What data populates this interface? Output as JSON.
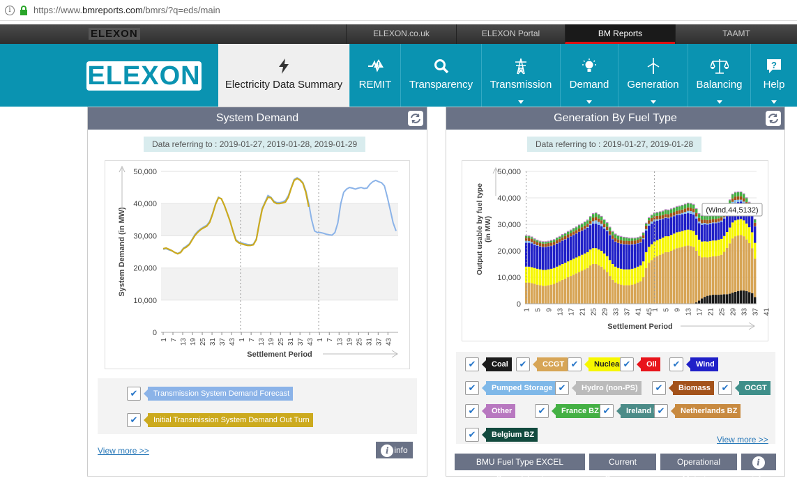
{
  "browser": {
    "url_prefix": "https://www.",
    "url_domain": "bmreports.com",
    "url_path": "/bmrs/?q=eds/main"
  },
  "top_strip": {
    "logo": "ELEXON",
    "tabs": [
      {
        "label": "ELEXON.co.uk"
      },
      {
        "label": "ELEXON Portal"
      },
      {
        "label": "BM Reports"
      },
      {
        "label": "TAAMT"
      }
    ]
  },
  "nav": {
    "logo": "ELEXON",
    "items": [
      {
        "label": "Electricity Data Summary",
        "icon": "bolt-icon"
      },
      {
        "label": "REMIT",
        "icon": "warning-icon"
      },
      {
        "label": "Transparency",
        "icon": "search-icon"
      },
      {
        "label": "Transmission",
        "icon": "pylon-icon"
      },
      {
        "label": "Demand",
        "icon": "lightbulb-icon"
      },
      {
        "label": "Generation",
        "icon": "wind-turbine-icon"
      },
      {
        "label": "Balancing",
        "icon": "scales-icon"
      },
      {
        "label": "Help",
        "icon": "help-icon"
      }
    ]
  },
  "system_demand": {
    "title": "System Demand",
    "data_ref": "Data referring to : 2019-01-27, 2019-01-28, 2019-01-29",
    "legend": [
      "Transmission System Demand Forecast",
      "Initial Transmission System Demand Out Turn"
    ],
    "view_more": "View more >>",
    "info": "info"
  },
  "generation": {
    "title": "Generation By Fuel Type",
    "data_ref": "Data referring to : 2019-01-27, 2019-01-28",
    "tooltip": "(Wind,44,5132)",
    "fuels": [
      {
        "label": "Coal",
        "color": "#1b1b1b",
        "text": "#ffffff"
      },
      {
        "label": "CCGT",
        "color": "#d7a556",
        "text": "#ffffff"
      },
      {
        "label": "Nuclear",
        "color": "#f7f700",
        "text": "#222222"
      },
      {
        "label": "Oil",
        "color": "#e8141b",
        "text": "#ffffff"
      },
      {
        "label": "Wind",
        "color": "#2020c8",
        "text": "#ffffff"
      },
      {
        "label": "Pumped Storage",
        "color": "#7fb8e8",
        "text": "#ffffff"
      },
      {
        "label": "Hydro (non-PS)",
        "color": "#bbbbbb",
        "text": "#ffffff"
      },
      {
        "label": "Biomass",
        "color": "#a3521a",
        "text": "#ffffff"
      },
      {
        "label": "OCGT",
        "color": "#3f8f8a",
        "text": "#ffffff"
      },
      {
        "label": "Other",
        "color": "#b878c0",
        "text": "#ffffff"
      },
      {
        "label": "France BZ",
        "color": "#44b044",
        "text": "#ffffff"
      },
      {
        "label": "Ireland BZ",
        "color": "#4c8c88",
        "text": "#ffffff"
      },
      {
        "label": "Netherlands BZ",
        "color": "#c88a40",
        "text": "#ffffff"
      },
      {
        "label": "Belgium BZ",
        "color": "#124a3e",
        "text": "#ffffff"
      }
    ],
    "view_more": "View more >>",
    "buttons": [
      "BMU Fuel Type EXCEL Spreadsheet",
      "Current Summary",
      "Operational Metering"
    ],
    "info": "info"
  },
  "chart_data": [
    {
      "type": "line",
      "ylabel": "System Demand (in MW)",
      "xlabel": "Settlement Period",
      "ylim": [
        0,
        50000
      ],
      "yticks": [
        "0",
        "10,000",
        "20,000",
        "30,000",
        "40,000",
        "50,000"
      ],
      "xticks": [
        "1",
        "7",
        "13",
        "19",
        "25",
        "31",
        "37",
        "43",
        "1",
        "7",
        "13",
        "19",
        "25",
        "31",
        "37",
        "43",
        "1",
        "7",
        "13",
        "19",
        "25",
        "31",
        "37",
        "43"
      ],
      "grid": "alternating bands",
      "series": [
        {
          "name": "Transmission System Demand Forecast",
          "color": "#8bb3e8",
          "values": [
            25800,
            26000,
            25600,
            25300,
            24800,
            24500,
            25000,
            26200,
            26800,
            27500,
            29000,
            30500,
            31500,
            32200,
            32800,
            33300,
            34500,
            37000,
            40000,
            42000,
            41500,
            39500,
            37000,
            34500,
            31500,
            28800,
            28000,
            27800,
            27500,
            27300,
            27200,
            27400,
            29000,
            34000,
            38500,
            40500,
            42500,
            42000,
            40800,
            40300,
            40300,
            40500,
            41000,
            42500,
            45000,
            47500,
            48000,
            47500,
            46500,
            44000,
            40000,
            35000,
            31500,
            31000,
            31000,
            30800,
            30500,
            30300,
            30200,
            31000,
            34000,
            40000,
            43500,
            44500,
            45000,
            44800,
            44500,
            44800,
            45000,
            44700,
            44800,
            46000,
            46800,
            47200,
            46800,
            46500,
            45500,
            42000,
            38000,
            34000,
            31500
          ]
        },
        {
          "name": "Initial Transmission System Demand Out Turn",
          "color": "#ccaa1e",
          "values": [
            26000,
            26200,
            25800,
            25400,
            24800,
            24400,
            24800,
            26000,
            26500,
            27300,
            28800,
            30200,
            31200,
            32000,
            32500,
            33000,
            34200,
            36800,
            39800,
            41800,
            41500,
            39500,
            37000,
            34500,
            31300,
            28500,
            27800,
            27500,
            27200,
            27000,
            27000,
            27200,
            28800,
            33800,
            38200,
            40200,
            42000,
            41800,
            40500,
            40000,
            40000,
            40200,
            40500,
            42000,
            44800,
            47200,
            47800,
            47300,
            46300,
            43500,
            39000
          ]
        }
      ]
    },
    {
      "type": "area",
      "stacked": true,
      "ylabel": "Output usable by fuel type (in MW)",
      "xlabel": "Settlement Period",
      "ylim": [
        0,
        50000
      ],
      "yticks": [
        "0",
        "10,000",
        "20,000",
        "30,000",
        "40,000",
        "50,000"
      ],
      "xticks": [
        "1",
        "5",
        "9",
        "13",
        "17",
        "21",
        "25",
        "29",
        "33",
        "37",
        "41",
        "45",
        "1",
        "5",
        "9",
        "13",
        "17",
        "21",
        "25",
        "29",
        "33",
        "37",
        "41"
      ],
      "series": [
        {
          "name": "Coal",
          "values": [
            0,
            0,
            0,
            0,
            0,
            0,
            0,
            0,
            0,
            0,
            0,
            0,
            0,
            0,
            0,
            0,
            0,
            0,
            0,
            0,
            0,
            0,
            0,
            0,
            0,
            0,
            0,
            0,
            0,
            0,
            0,
            0,
            0,
            0,
            0,
            0,
            0,
            0,
            0,
            0,
            0,
            0,
            0,
            0,
            0,
            0,
            0,
            0,
            0,
            0,
            0,
            0,
            0,
            0,
            0,
            0,
            0,
            0,
            0,
            0,
            0,
            500,
            1200,
            2000,
            2600,
            3000,
            3200,
            3400,
            3400,
            3400,
            3500,
            3600,
            3600,
            3800,
            4200,
            4500,
            4800,
            5000,
            5000,
            4800,
            4400,
            4000,
            2500
          ]
        },
        {
          "name": "CCGT",
          "values": [
            8000,
            8000,
            7800,
            7500,
            7200,
            7000,
            6800,
            6800,
            7000,
            7200,
            7500,
            8000,
            8500,
            9000,
            9500,
            10000,
            10500,
            11000,
            11500,
            12000,
            12500,
            13000,
            13500,
            14500,
            15000,
            15000,
            14500,
            14000,
            13000,
            12000,
            10500,
            9000,
            8000,
            7500,
            7200,
            7000,
            7000,
            7000,
            7200,
            7500,
            8000,
            8500,
            10000,
            13500,
            15500,
            16500,
            17500,
            18000,
            18500,
            19000,
            19500,
            19500,
            20000,
            20500,
            21000,
            21200,
            21500,
            21800,
            22000,
            21800,
            21500,
            19500,
            17000,
            15500,
            15000,
            14500,
            14500,
            14500,
            14500,
            14800,
            15000,
            16000,
            17500,
            19000,
            20500,
            21000,
            21000,
            21000,
            20500,
            19500,
            18500,
            17000,
            14500
          ]
        },
        {
          "name": "Nuclear",
          "values": [
            6000,
            6000,
            6000,
            6000,
            6000,
            6000,
            6000,
            6000,
            6000,
            6000,
            6000,
            6000,
            6000,
            6000,
            6000,
            6000,
            6000,
            6000,
            6000,
            6000,
            6000,
            6000,
            6000,
            6000,
            6000,
            6000,
            6000,
            6000,
            6000,
            6000,
            6000,
            6000,
            6000,
            6000,
            6000,
            6000,
            6000,
            6000,
            6000,
            6000,
            6000,
            6000,
            6000,
            6000,
            6000,
            6000,
            6000,
            6000,
            6000,
            6000,
            6000,
            6000,
            6000,
            6000,
            6000,
            6000,
            6000,
            6000,
            6000,
            6000,
            6000,
            6000,
            6000,
            6000,
            6000,
            6000,
            6000,
            6000,
            6000,
            6000,
            6000,
            6000,
            6000,
            6000,
            6000,
            6000,
            6000,
            6000,
            6000,
            6000,
            6000,
            6000,
            6000
          ]
        },
        {
          "name": "Wind",
          "values": [
            9000,
            9000,
            9000,
            8800,
            8700,
            8600,
            8600,
            8600,
            8600,
            8600,
            8600,
            8700,
            8700,
            8800,
            8800,
            8900,
            8900,
            9000,
            9000,
            9100,
            9100,
            9100,
            9200,
            9200,
            9300,
            9300,
            9300,
            9300,
            9300,
            9400,
            9400,
            9400,
            9400,
            9400,
            9400,
            9400,
            9400,
            9300,
            9200,
            9000,
            8800,
            8600,
            8400,
            8200,
            8000,
            7800,
            7600,
            7400,
            7200,
            7000,
            6900,
            6800,
            6700,
            6600,
            6500,
            6400,
            6300,
            6200,
            6200,
            6200,
            6200,
            6200,
            6200,
            6300,
            6400,
            6400,
            6500,
            6500,
            6500,
            6500,
            6500,
            6600,
            6600,
            6600,
            6600,
            6600,
            6600,
            6600,
            6600,
            6500,
            6400,
            6300,
            6200
          ]
        },
        {
          "name": "Pumped Storage",
          "values": [
            800,
            700,
            500,
            300,
            200,
            100,
            100,
            100,
            100,
            100,
            100,
            100,
            100,
            100,
            100,
            100,
            100,
            100,
            100,
            100,
            100,
            200,
            300,
            500,
            900,
            1200,
            1100,
            900,
            600,
            400,
            200,
            100,
            100,
            100,
            100,
            100,
            100,
            100,
            100,
            100,
            100,
            200,
            300,
            500,
            700,
            800,
            700,
            500,
            300,
            200,
            200,
            200,
            200,
            200,
            300,
            400,
            500,
            700,
            900,
            1000,
            900,
            800,
            700,
            600,
            500,
            400,
            300,
            300,
            300,
            300,
            400,
            500,
            700,
            900,
            1200,
            1100,
            900,
            700,
            500,
            300,
            200,
            100,
            100
          ]
        },
        {
          "name": "Biomass",
          "values": [
            1200,
            1200,
            1200,
            1200,
            1200,
            1200,
            1200,
            1200,
            1200,
            1200,
            1200,
            1200,
            1200,
            1200,
            1200,
            1200,
            1200,
            1200,
            1200,
            1200,
            1200,
            1200,
            1200,
            1200,
            1300,
            1300,
            1300,
            1300,
            1300,
            1300,
            1300,
            1300,
            1300,
            1300,
            1300,
            1300,
            1300,
            1300,
            1300,
            1300,
            1300,
            1300,
            1300,
            1300,
            1300,
            1300,
            1300,
            1300,
            1300,
            1300,
            1300,
            1300,
            1300,
            1300,
            1300,
            1300,
            1300,
            1300,
            1300,
            1300,
            1300,
            1300,
            1300,
            1300,
            1300,
            1300,
            1300,
            1300,
            1300,
            1300,
            1300,
            1300,
            1300,
            1300,
            1300,
            1300,
            1300,
            1300,
            1300,
            1300,
            1300,
            1300,
            1300
          ]
        },
        {
          "name": "France BZ",
          "values": [
            600,
            600,
            600,
            600,
            600,
            600,
            600,
            600,
            600,
            700,
            700,
            800,
            800,
            900,
            900,
            1000,
            1000,
            1100,
            1100,
            1200,
            1200,
            1300,
            1300,
            1400,
            1400,
            1400,
            1400,
            1400,
            1400,
            1400,
            1400,
            1400,
            1400,
            1300,
            1300,
            1200,
            1100,
            1000,
            900,
            800,
            700,
            700,
            700,
            800,
            900,
            1000,
            1100,
            1200,
            1300,
            1400,
            1500,
            1500,
            1500,
            1500,
            1500,
            1500,
            1500,
            1500,
            1500,
            1500,
            1500,
            1500,
            1500,
            1500,
            1500,
            1500,
            1500,
            1500,
            1500,
            1500,
            1500,
            1500,
            1500,
            1500,
            1500,
            1500,
            1500,
            1500,
            1500,
            1500,
            1400,
            1300,
            1200
          ]
        },
        {
          "name": "Other",
          "values": [
            300,
            300,
            300,
            300,
            300,
            300,
            300,
            300,
            300,
            300,
            300,
            300,
            300,
            300,
            300,
            300,
            300,
            300,
            300,
            300,
            300,
            300,
            300,
            300,
            300,
            300,
            300,
            300,
            300,
            300,
            300,
            300,
            300,
            300,
            300,
            300,
            300,
            300,
            300,
            300,
            300,
            300,
            300,
            300,
            300,
            300,
            300,
            300,
            300,
            300,
            300,
            300,
            300,
            300,
            300,
            300,
            300,
            300,
            300,
            300,
            300,
            300,
            300,
            300,
            300,
            300,
            300,
            300,
            300,
            300,
            300,
            300,
            300,
            300,
            300,
            300,
            300,
            300,
            300,
            300,
            300,
            300,
            300
          ]
        }
      ]
    }
  ]
}
